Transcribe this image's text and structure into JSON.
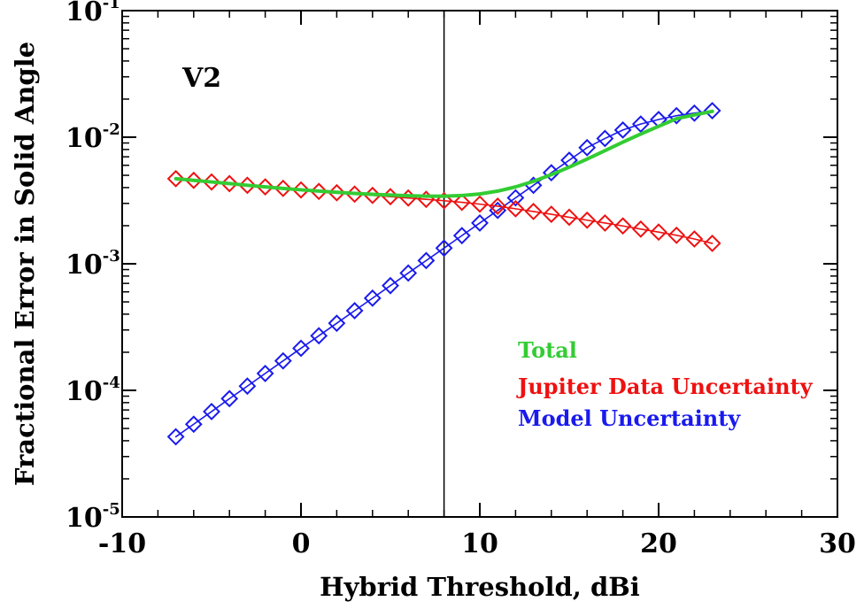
{
  "chart_data": {
    "type": "line",
    "title": "",
    "panel_label": "V2",
    "xlabel": "Hybrid Threshold, dBi",
    "ylabel": "Fractional Error in Solid Angle",
    "xlim": [
      -10,
      30
    ],
    "ylim": [
      1e-05,
      0.1
    ],
    "yscale": "log",
    "x_ticks": [
      -10,
      0,
      10,
      20,
      30
    ],
    "x_tick_labels": [
      "-10",
      "0",
      "10",
      "20",
      "30"
    ],
    "y_ticks": [
      1e-05,
      0.0001,
      0.001,
      0.01,
      0.1
    ],
    "y_tick_labels": [
      {
        "base": "10",
        "exp": "-5"
      },
      {
        "base": "10",
        "exp": "-4"
      },
      {
        "base": "10",
        "exp": "-3"
      },
      {
        "base": "10",
        "exp": "-2"
      },
      {
        "base": "10",
        "exp": "-1"
      }
    ],
    "vertical_line_x": 8,
    "grid": false,
    "legend_position": "bottom-right",
    "x": [
      -7,
      -6,
      -5,
      -4,
      -3,
      -2,
      -1,
      0,
      1,
      2,
      3,
      4,
      5,
      6,
      7,
      8,
      9,
      10,
      11,
      12,
      13,
      14,
      15,
      16,
      17,
      18,
      19,
      20,
      21,
      22,
      23
    ],
    "series": [
      {
        "name": "Total",
        "color": "#33cc33",
        "marker": "none",
        "values": [
          0.0047,
          0.00456,
          0.00443,
          0.0043,
          0.00417,
          0.00405,
          0.00394,
          0.00384,
          0.00375,
          0.00367,
          0.0036,
          0.00354,
          0.00349,
          0.00345,
          0.00342,
          0.00342,
          0.00346,
          0.00356,
          0.00375,
          0.00405,
          0.00448,
          0.00506,
          0.0058,
          0.00672,
          0.00783,
          0.00914,
          0.0106,
          0.0122,
          0.014,
          0.015,
          0.016
        ]
      },
      {
        "name": "Jupiter Data Uncertainty",
        "color": "#ee1111",
        "marker": "diamond",
        "values": [
          0.0047,
          0.00456,
          0.00443,
          0.0043,
          0.00417,
          0.00405,
          0.00394,
          0.00383,
          0.00373,
          0.00364,
          0.00355,
          0.00347,
          0.00339,
          0.00331,
          0.00323,
          0.00315,
          0.00306,
          0.00296,
          0.00285,
          0.00272,
          0.00259,
          0.00246,
          0.00233,
          0.00221,
          0.0021,
          0.00199,
          0.00188,
          0.00178,
          0.00168,
          0.00157,
          0.00145
        ]
      },
      {
        "name": "Model Uncertainty",
        "color": "#1a1aee",
        "marker": "diamond",
        "values": [
          4.3e-05,
          5.4e-05,
          6.8e-05,
          8.6e-05,
          0.000108,
          0.000136,
          0.000171,
          0.000215,
          0.00027,
          0.000339,
          0.000426,
          0.000535,
          0.000672,
          0.000845,
          0.00106,
          0.00133,
          0.00167,
          0.0021,
          0.00264,
          0.00332,
          0.00417,
          0.00524,
          0.00658,
          0.00827,
          0.00977,
          0.0114,
          0.0127,
          0.0138,
          0.0148,
          0.0155,
          0.0162
        ]
      }
    ]
  }
}
